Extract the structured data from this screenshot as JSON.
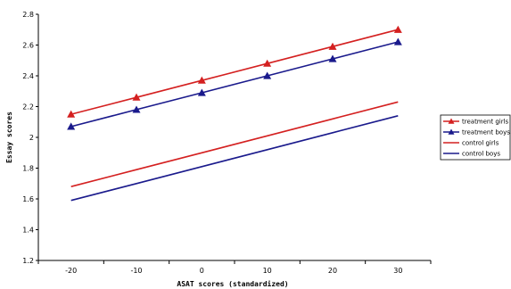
{
  "chart_data": {
    "type": "line",
    "title": "",
    "xlabel": "ASAT scores (standardized)",
    "ylabel": "Essay scores",
    "x": [
      -20,
      -10,
      0,
      10,
      20,
      30
    ],
    "xlim": [
      -25,
      35
    ],
    "ylim": [
      1.2,
      2.8
    ],
    "y_ticks": [
      1.2,
      1.4,
      1.6,
      1.8,
      2,
      2.2,
      2.4,
      2.6,
      2.8
    ],
    "y_tick_labels": [
      "1.2",
      "1.4",
      "1.6",
      "1.8",
      "2",
      "2.2",
      "2.4",
      "2.6",
      "2.8"
    ],
    "x_tick_labels": [
      "-20",
      "-10",
      "0",
      "10",
      "20",
      "30"
    ],
    "grid": false,
    "legend_position": "right",
    "series": [
      {
        "name": "treatment girls",
        "color": "#d42020",
        "marker": "triangle",
        "values": [
          2.15,
          2.26,
          2.37,
          2.48,
          2.59,
          2.7
        ]
      },
      {
        "name": "treatment boys",
        "color": "#1a1a8c",
        "marker": "triangle",
        "values": [
          2.07,
          2.18,
          2.29,
          2.4,
          2.51,
          2.62
        ]
      },
      {
        "name": "control girls",
        "color": "#d42020",
        "marker": "none",
        "values": [
          1.68,
          1.79,
          1.9,
          2.01,
          2.12,
          2.23
        ]
      },
      {
        "name": "control boys",
        "color": "#1a1a8c",
        "marker": "none",
        "values": [
          1.59,
          1.7,
          1.81,
          1.92,
          2.03,
          2.14
        ]
      }
    ]
  }
}
